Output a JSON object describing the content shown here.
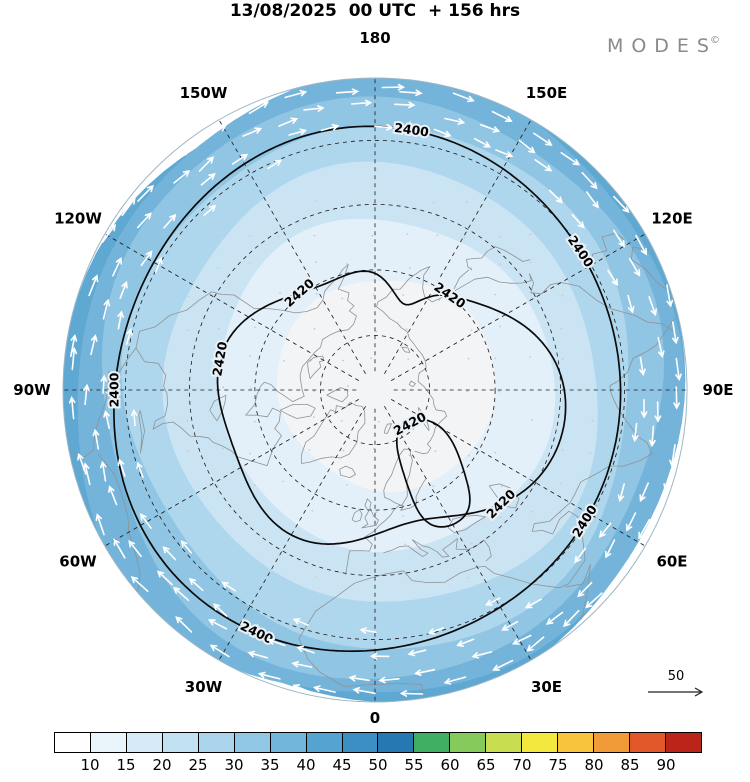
{
  "header": {
    "title": "13/08/2025  00 UTC  + 156 hrs",
    "logo_text": "MODES",
    "logo_mark": "©"
  },
  "chart_data": {
    "type": "map",
    "projection": "north_polar_stereographic",
    "field": "geopotential height contours with wind speed shading and wind vectors",
    "valid_time": "13/08/2025 00 UTC",
    "forecast_lead": "+ 156 hrs",
    "meridian_labels": [
      {
        "label": "180",
        "angle": 0
      },
      {
        "label": "150E",
        "angle": 30
      },
      {
        "label": "120E",
        "angle": 60
      },
      {
        "label": "90E",
        "angle": 90
      },
      {
        "label": "60E",
        "angle": 120
      },
      {
        "label": "30E",
        "angle": 150
      },
      {
        "label": "0",
        "angle": 180
      },
      {
        "label": "30W",
        "angle": 210
      },
      {
        "label": "60W",
        "angle": 240
      },
      {
        "label": "90W",
        "angle": 270
      },
      {
        "label": "120W",
        "angle": 300
      },
      {
        "label": "150W",
        "angle": 330
      }
    ],
    "grid": {
      "lat_circle_fractions": [
        0.175,
        0.385,
        0.595,
        0.8
      ],
      "meridian_step_deg": 30
    },
    "shading_rings": [
      {
        "r": 1.0,
        "color": "#5fa8d2"
      },
      {
        "r": 0.985,
        "color": "#74b4da"
      },
      {
        "r": 0.915,
        "color": "#90c5e3"
      },
      {
        "r": 0.825,
        "color": "#aed6ed"
      },
      {
        "r": 0.7,
        "color": "#cbe4f4"
      },
      {
        "r": 0.535,
        "color": "#e3eff9"
      },
      {
        "r": 0.345,
        "color": "#f3f4f6"
      }
    ],
    "contours": [
      {
        "value": "2400",
        "label_angles": [
          8,
          56,
          122,
          206,
          270
        ]
      },
      {
        "value": "2420",
        "label_angles": [
          35,
          135,
          280,
          318
        ]
      }
    ],
    "inner_contour": {
      "value": "2420"
    },
    "wind": {
      "reference_label": "50",
      "flow_direction": "clockwise (easterly)"
    },
    "colorbar": {
      "tick_labels": [
        "10",
        "15",
        "20",
        "25",
        "30",
        "35",
        "40",
        "45",
        "50",
        "55",
        "60",
        "65",
        "70",
        "75",
        "80",
        "85",
        "90"
      ],
      "colors": [
        "#ffffff",
        "#e9f4fb",
        "#d6ebf7",
        "#c2e1f3",
        "#aad5ed",
        "#8fc7e5",
        "#72b6dc",
        "#55a3d0",
        "#3b8fc2",
        "#2678b2",
        "#3fae62",
        "#86ca5b",
        "#c8de50",
        "#f3e93e",
        "#f6c33a",
        "#f09a38",
        "#e2572a",
        "#bb2418"
      ]
    }
  }
}
